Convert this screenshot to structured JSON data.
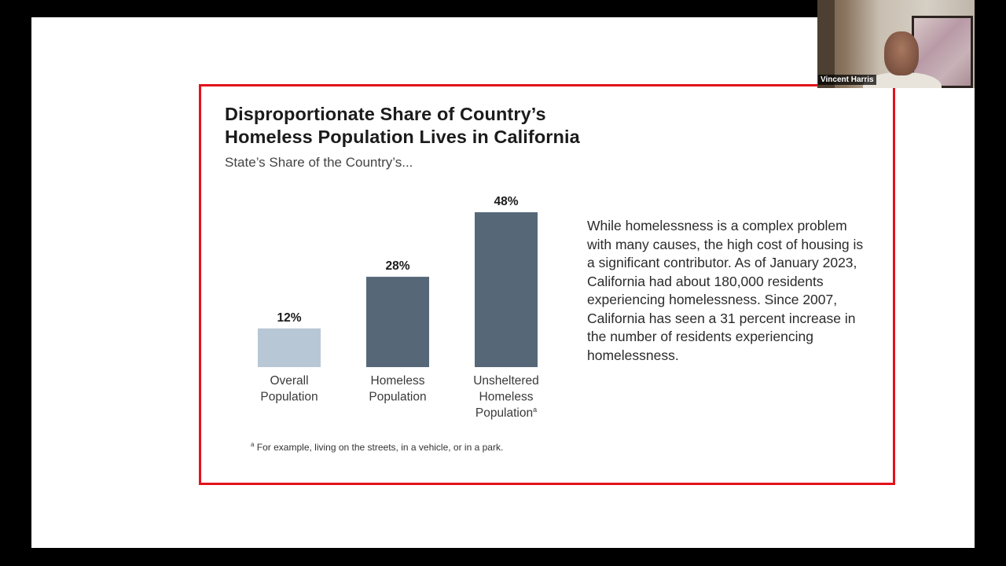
{
  "slide": {
    "title_line1": "Disproportionate Share of Country’s",
    "title_line2": "Homeless Population Lives in California",
    "subtitle": "State’s Share of the Country’s...",
    "paragraph": "While homelessness is a complex problem with many causes, the high cost of housing is a significant contributor. As of January 2023, California had about 180,000 residents experiencing homelessness. Since 2007, California has seen a 31 percent increase in the number of residents experiencing homelessness.",
    "footnote_marker": "a",
    "footnote": "For example, living on the streets, in a vehicle, or in a park.",
    "border_color": "#e3121b"
  },
  "chart_data": {
    "type": "bar",
    "categories": [
      "Overall Population",
      "Homeless Population",
      "Unsheltered Homeless Population"
    ],
    "values": [
      12,
      28,
      48
    ],
    "value_labels": [
      "12%",
      "28%",
      "48%"
    ],
    "category_lines": [
      [
        "Overall",
        "Population"
      ],
      [
        "Homeless",
        "Population"
      ],
      [
        "Unsheltered",
        "Homeless",
        "Population"
      ]
    ],
    "category_superscripts": [
      "",
      "",
      "a"
    ],
    "colors": [
      "#b8c7d6",
      "#566878",
      "#566878"
    ],
    "ylim": [
      0,
      48
    ],
    "grid": false
  },
  "video": {
    "participant_name": "Vincent Harris"
  }
}
